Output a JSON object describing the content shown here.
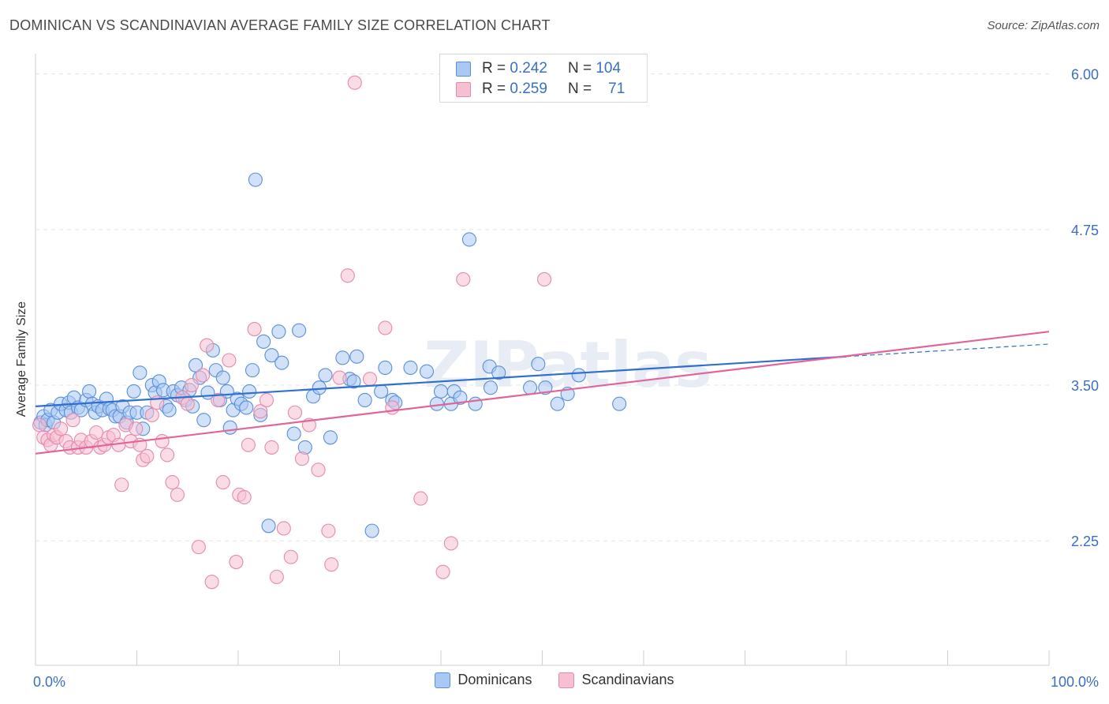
{
  "title": "DOMINICAN VS SCANDINAVIAN AVERAGE FAMILY SIZE CORRELATION CHART",
  "source": "Source: ZipAtlas.com",
  "watermark": "ZIPatlas",
  "legend": {
    "rows": [
      {
        "r_label": "R = ",
        "r_value": "0.242",
        "n_label": "N = ",
        "n_value": "104"
      },
      {
        "r_label": "R = ",
        "r_value": "0.259",
        "n_label": "N = ",
        "n_value": "71"
      }
    ]
  },
  "colors": {
    "blue_fill": "#a9c8f3",
    "blue_stroke": "#5a8fd8",
    "blue_line": "#2f6fcf",
    "pink_fill": "#f6bfd2",
    "pink_stroke": "#e58aab",
    "pink_line": "#e0669a",
    "axis_text": "#3a6fc4",
    "grid": "#e3e3e3"
  },
  "chart_data": {
    "type": "scatter",
    "title": "DOMINICAN VS SCANDINAVIAN AVERAGE FAMILY SIZE CORRELATION CHART",
    "xlabel": "",
    "ylabel": "Average Family Size",
    "xlim": [
      0,
      100
    ],
    "ylim": [
      1.25,
      6.15
    ],
    "x_tick_labels": [
      "0.0%",
      "100.0%"
    ],
    "y_ticks": [
      2.25,
      3.5,
      4.75,
      6.0
    ],
    "y_tick_labels": [
      "2.25",
      "3.50",
      "4.75",
      "6.00"
    ],
    "grid": true,
    "legend_position": "bottom-center",
    "series": [
      {
        "name": "Dominicans",
        "color": "#5a8fd8",
        "r": "0.242",
        "n": "104",
        "trend": {
          "x": [
            0,
            80
          ],
          "y": [
            3.33,
            3.73
          ]
        },
        "trend_dashed": {
          "x": [
            80,
            100
          ],
          "y": [
            3.73,
            3.83
          ]
        },
        "points": [
          [
            0.5,
            3.2
          ],
          [
            0.8,
            3.25
          ],
          [
            1.0,
            3.18
          ],
          [
            1.2,
            3.22
          ],
          [
            1.5,
            3.3
          ],
          [
            1.8,
            3.2
          ],
          [
            2.2,
            3.28
          ],
          [
            2.5,
            3.35
          ],
          [
            3.0,
            3.3
          ],
          [
            3.3,
            3.36
          ],
          [
            3.5,
            3.28
          ],
          [
            3.8,
            3.4
          ],
          [
            4.2,
            3.32
          ],
          [
            4.5,
            3.3
          ],
          [
            5.0,
            3.38
          ],
          [
            5.3,
            3.45
          ],
          [
            5.6,
            3.35
          ],
          [
            5.9,
            3.28
          ],
          [
            6.2,
            3.33
          ],
          [
            6.6,
            3.3
          ],
          [
            7.0,
            3.39
          ],
          [
            7.3,
            3.31
          ],
          [
            7.6,
            3.3
          ],
          [
            7.9,
            3.25
          ],
          [
            8.3,
            3.25
          ],
          [
            8.6,
            3.33
          ],
          [
            9.0,
            3.2
          ],
          [
            9.3,
            3.28
          ],
          [
            9.7,
            3.45
          ],
          [
            10.0,
            3.28
          ],
          [
            10.3,
            3.6
          ],
          [
            10.6,
            3.15
          ],
          [
            11.0,
            3.28
          ],
          [
            11.5,
            3.5
          ],
          [
            11.8,
            3.44
          ],
          [
            12.2,
            3.53
          ],
          [
            12.6,
            3.46
          ],
          [
            12.9,
            3.33
          ],
          [
            13.2,
            3.3
          ],
          [
            13.6,
            3.45
          ],
          [
            14.0,
            3.42
          ],
          [
            14.4,
            3.48
          ],
          [
            14.8,
            3.38
          ],
          [
            15.2,
            3.46
          ],
          [
            15.5,
            3.33
          ],
          [
            15.8,
            3.66
          ],
          [
            16.2,
            3.56
          ],
          [
            16.6,
            3.22
          ],
          [
            17.0,
            3.44
          ],
          [
            17.5,
            3.78
          ],
          [
            17.8,
            3.62
          ],
          [
            18.2,
            3.38
          ],
          [
            18.5,
            3.56
          ],
          [
            18.9,
            3.45
          ],
          [
            19.2,
            3.16
          ],
          [
            19.5,
            3.3
          ],
          [
            19.9,
            3.39
          ],
          [
            20.3,
            3.35
          ],
          [
            20.8,
            3.32
          ],
          [
            21.1,
            3.45
          ],
          [
            21.4,
            3.62
          ],
          [
            21.7,
            5.15
          ],
          [
            22.2,
            3.26
          ],
          [
            22.5,
            3.85
          ],
          [
            23.0,
            2.37
          ],
          [
            23.3,
            3.74
          ],
          [
            24.0,
            3.93
          ],
          [
            24.3,
            3.68
          ],
          [
            25.5,
            3.11
          ],
          [
            26.0,
            3.94
          ],
          [
            26.6,
            3.0
          ],
          [
            27.4,
            3.41
          ],
          [
            28.0,
            3.48
          ],
          [
            28.6,
            3.58
          ],
          [
            29.1,
            3.08
          ],
          [
            30.3,
            3.72
          ],
          [
            31.0,
            3.55
          ],
          [
            31.4,
            3.53
          ],
          [
            31.7,
            3.73
          ],
          [
            32.5,
            3.38
          ],
          [
            33.2,
            2.33
          ],
          [
            34.1,
            3.45
          ],
          [
            34.5,
            3.64
          ],
          [
            35.2,
            3.38
          ],
          [
            35.5,
            3.36
          ],
          [
            37.0,
            3.64
          ],
          [
            38.6,
            3.61
          ],
          [
            39.6,
            3.35
          ],
          [
            40.0,
            3.45
          ],
          [
            41.0,
            3.35
          ],
          [
            41.3,
            3.45
          ],
          [
            41.9,
            3.4
          ],
          [
            42.8,
            4.67
          ],
          [
            43.4,
            3.35
          ],
          [
            44.8,
            3.65
          ],
          [
            44.9,
            3.48
          ],
          [
            45.7,
            3.6
          ],
          [
            48.8,
            3.48
          ],
          [
            49.6,
            3.67
          ],
          [
            50.3,
            3.48
          ],
          [
            51.5,
            3.35
          ],
          [
            52.5,
            3.43
          ],
          [
            53.6,
            3.58
          ],
          [
            57.6,
            3.35
          ]
        ]
      },
      {
        "name": "Scandinavians",
        "color": "#e58aab",
        "r": "0.259",
        "n": "71",
        "trend": {
          "x": [
            0,
            100
          ],
          "y": [
            2.95,
            3.93
          ]
        },
        "points": [
          [
            0.4,
            3.18
          ],
          [
            0.8,
            3.08
          ],
          [
            1.2,
            3.06
          ],
          [
            1.5,
            3.02
          ],
          [
            1.8,
            3.1
          ],
          [
            2.1,
            3.08
          ],
          [
            2.5,
            3.15
          ],
          [
            3.0,
            3.05
          ],
          [
            3.4,
            3.0
          ],
          [
            3.7,
            3.22
          ],
          [
            4.2,
            3.0
          ],
          [
            4.5,
            3.06
          ],
          [
            5.0,
            3.0
          ],
          [
            5.5,
            3.05
          ],
          [
            6.0,
            3.12
          ],
          [
            6.4,
            3.0
          ],
          [
            6.8,
            3.02
          ],
          [
            7.2,
            3.08
          ],
          [
            7.7,
            3.1
          ],
          [
            8.2,
            3.02
          ],
          [
            8.5,
            2.7
          ],
          [
            8.9,
            3.18
          ],
          [
            9.4,
            3.05
          ],
          [
            9.9,
            3.15
          ],
          [
            10.3,
            3.02
          ],
          [
            10.6,
            2.9
          ],
          [
            11.0,
            2.93
          ],
          [
            11.5,
            3.26
          ],
          [
            12.0,
            3.36
          ],
          [
            12.5,
            3.05
          ],
          [
            13.0,
            2.94
          ],
          [
            13.5,
            2.72
          ],
          [
            14.0,
            2.62
          ],
          [
            14.5,
            3.4
          ],
          [
            15.0,
            3.35
          ],
          [
            15.4,
            3.5
          ],
          [
            16.1,
            2.2
          ],
          [
            16.5,
            3.58
          ],
          [
            16.9,
            3.82
          ],
          [
            17.4,
            1.92
          ],
          [
            18.0,
            3.38
          ],
          [
            18.5,
            2.72
          ],
          [
            19.1,
            3.7
          ],
          [
            19.8,
            2.08
          ],
          [
            20.1,
            2.62
          ],
          [
            20.6,
            2.6
          ],
          [
            21.0,
            3.02
          ],
          [
            21.6,
            3.95
          ],
          [
            22.2,
            3.29
          ],
          [
            22.8,
            3.38
          ],
          [
            23.3,
            3.0
          ],
          [
            23.8,
            1.96
          ],
          [
            24.5,
            2.35
          ],
          [
            25.2,
            2.12
          ],
          [
            25.6,
            3.28
          ],
          [
            26.3,
            2.91
          ],
          [
            27.0,
            3.18
          ],
          [
            27.9,
            2.82
          ],
          [
            28.9,
            2.33
          ],
          [
            29.2,
            2.06
          ],
          [
            30.0,
            3.56
          ],
          [
            30.8,
            4.38
          ],
          [
            31.5,
            5.93
          ],
          [
            33.0,
            3.55
          ],
          [
            34.5,
            3.96
          ],
          [
            35.2,
            3.32
          ],
          [
            38.0,
            2.59
          ],
          [
            40.2,
            2.0
          ],
          [
            41.0,
            2.23
          ],
          [
            42.2,
            4.35
          ],
          [
            50.2,
            4.35
          ]
        ]
      }
    ]
  }
}
